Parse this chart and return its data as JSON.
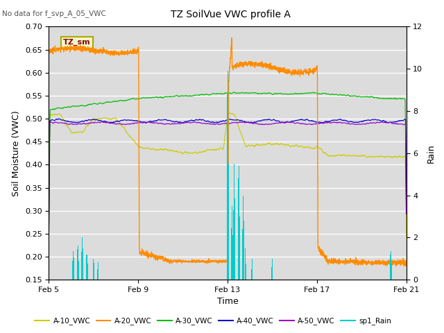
{
  "title": "TZ SoilVue VWC profile A",
  "top_left_note": "No data for f_svp_A_05_VWC",
  "xlabel": "Time",
  "ylabel_left": "Soil Moisture (VWC)",
  "ylabel_right": "Rain",
  "ylim_left": [
    0.15,
    0.7
  ],
  "ylim_right": [
    0,
    12
  ],
  "yticks_left": [
    0.15,
    0.2,
    0.25,
    0.3,
    0.35,
    0.4,
    0.45,
    0.5,
    0.55,
    0.6,
    0.65,
    0.7
  ],
  "yticks_right": [
    0,
    2,
    4,
    6,
    8,
    10,
    12
  ],
  "xtick_labels": [
    "Feb 5",
    "Feb 9",
    "Feb 13",
    "Feb 17",
    "Feb 21"
  ],
  "plot_bg_color": "#dcdcdc",
  "grid_color": "#ffffff",
  "colors": {
    "A10": "#cccc00",
    "A20": "#ff8c00",
    "A30": "#00bb00",
    "A40": "#0000cc",
    "A50": "#9900cc",
    "Rain": "#00cccc"
  },
  "legend_labels": [
    "A-10_VWC",
    "A-20_VWC",
    "A-30_VWC",
    "A-40_VWC",
    "A-50_VWC",
    "sp1_Rain"
  ],
  "tz_sm_label": "TZ_sm",
  "figsize": [
    6.4,
    4.8
  ],
  "dpi": 100
}
